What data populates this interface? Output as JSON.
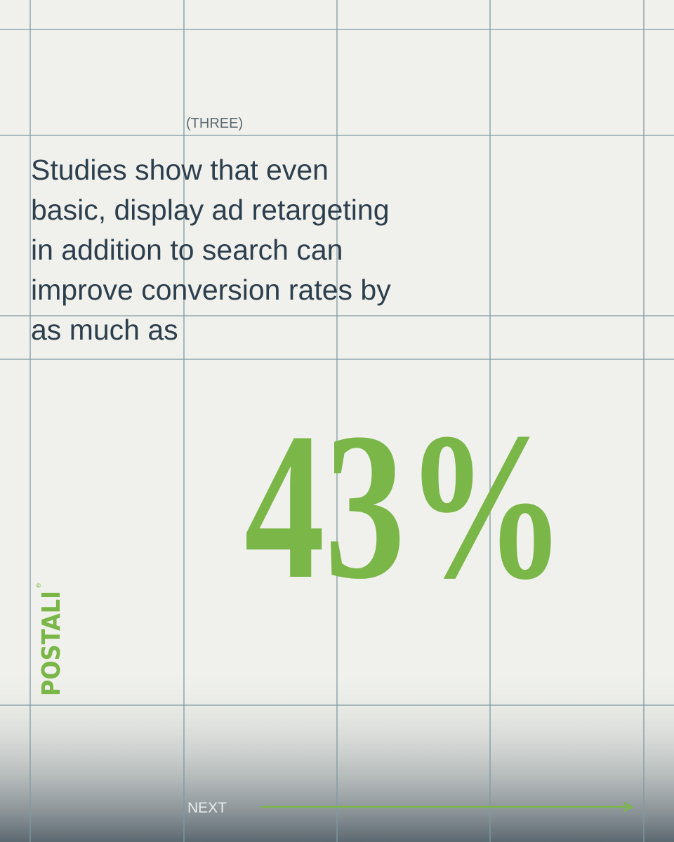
{
  "kicker": "(THREE)",
  "body_lines": [
    "Studies show that even",
    "basic, display ad retargeting",
    "in addition to search can",
    "improve conversion rates by",
    "as much as"
  ],
  "stat": "43%",
  "brand": "POSTALI",
  "brand_mark": "®",
  "next": "NEXT"
}
